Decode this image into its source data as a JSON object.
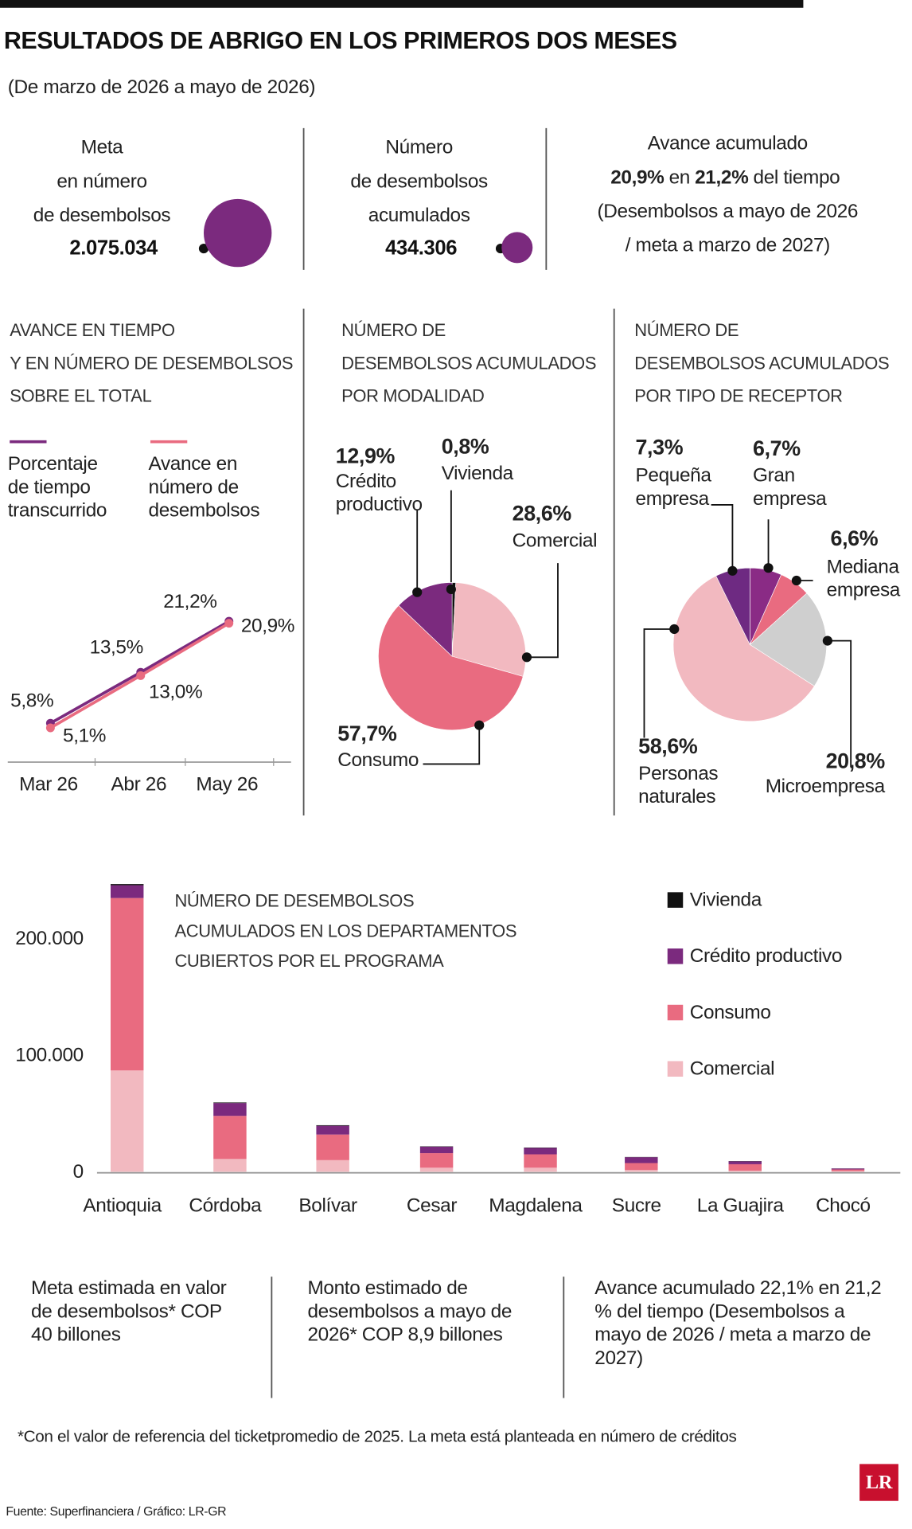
{
  "header": {
    "title": "RESULTADOS DE ABRIGO EN LOS PRIMEROS DOS MESES",
    "subtitle": "(De marzo de 2026 a mayo de 2026)"
  },
  "stats": [
    {
      "lines": [
        "Meta",
        "en número",
        "de desembolsos"
      ],
      "value": 2075034,
      "value_label": "2.075.034"
    },
    {
      "lines": [
        "Número",
        "de desembolsos",
        "acumulados"
      ],
      "value": 434306,
      "value_label": "434.306"
    },
    {
      "heading": "Avance acumulado",
      "parts": [
        "20,9%",
        "en",
        "21,2%",
        "del tiempo"
      ],
      "lines": [
        "(Desembolsos a mayo de 2026",
        "/ meta a marzo de 2027)"
      ]
    }
  ],
  "chart_data": [
    {
      "type": "line",
      "title": [
        "AVANCE EN TIEMPO",
        "Y EN NÚMERO DE DESEMBOLSOS",
        "SOBRE EL TOTAL"
      ],
      "categories": [
        "Mar 26",
        "Abr 26",
        "May 26"
      ],
      "series": [
        {
          "name": "Porcentaje de tiempo transcurrido",
          "color": "#7b2a7e",
          "values": [
            5.8,
            13.5,
            21.2
          ],
          "value_labels": [
            "5,8%",
            "13,5%",
            "21,2%"
          ]
        },
        {
          "name": "Avance en número de desembolsos",
          "color": "#e96b80",
          "values": [
            5.1,
            13.0,
            20.9
          ],
          "value_labels": [
            "5,1%",
            "13,0%",
            "20,9%"
          ]
        }
      ]
    },
    {
      "type": "pie",
      "title": [
        "NÚMERO DE",
        "DESEMBOLSOS ACUMULADOS",
        "POR MODALIDAD"
      ],
      "categories": [
        "Vivienda",
        "Comercial",
        "Consumo",
        "Crédito productivo"
      ],
      "values": [
        0.8,
        28.6,
        57.7,
        12.9
      ],
      "value_labels": [
        "0,8%",
        "28,6%",
        "57,7%",
        "12,9%"
      ],
      "colors": [
        "#111111",
        "#f2b9c0",
        "#e96b80",
        "#7b2a7e"
      ]
    },
    {
      "type": "pie",
      "title": [
        "NÚMERO DE",
        "DESEMBOLSOS ACUMULADOS",
        "POR TIPO DE RECEPTOR"
      ],
      "categories": [
        "Gran empresa",
        "Mediana empresa",
        "Microempresa",
        "Personas naturales",
        "Pequeña empresa"
      ],
      "values": [
        6.7,
        6.6,
        20.8,
        58.6,
        7.3
      ],
      "value_labels": [
        "6,7%",
        "6,6%",
        "20,8%",
        "58,6%",
        "7,3%"
      ],
      "colors": [
        "#8a2b85",
        "#e96b80",
        "#cfcfcf",
        "#f2b9c0",
        "#6e2a82"
      ]
    },
    {
      "type": "bar",
      "stacked": true,
      "title": [
        "NÚMERO DE DESEMBOLSOS",
        "ACUMULADOS EN LOS DEPARTAMENTOS",
        "CUBIERTOS POR EL PROGRAMA"
      ],
      "categories": [
        "Antioquia",
        "Córdoba",
        "Bolívar",
        "Cesar",
        "Magdalena",
        "Sucre",
        "La Guajira",
        "Chocó"
      ],
      "series": [
        {
          "name": "Vivienda",
          "color": "#111111",
          "values": [
            1000,
            500,
            500,
            300,
            300,
            200,
            200,
            100
          ]
        },
        {
          "name": "Crédito productivo",
          "color": "#7b2a7e",
          "values": [
            11000,
            11000,
            7500,
            5500,
            5500,
            5000,
            2500,
            800
          ]
        },
        {
          "name": "Consumo",
          "color": "#e96b80",
          "values": [
            148000,
            37000,
            22000,
            12500,
            11500,
            6000,
            5500,
            1500
          ]
        },
        {
          "name": "Comercial",
          "color": "#f2b9c0",
          "values": [
            87000,
            11000,
            10000,
            3500,
            3500,
            1500,
            1000,
            500
          ]
        }
      ],
      "ylim": [
        0,
        250000
      ],
      "yticks": [
        0,
        {
          "value": 100000,
          "label": "100.000"
        },
        {
          "value": 200000,
          "label": "200.000"
        }
      ],
      "grid": false
    }
  ],
  "notes": [
    "Meta estimada en valor de desembolsos* COP 40 billones",
    "Monto estimado de desembolsos a mayo de 2026* COP 8,9 billones",
    "Avance acumulado 22,1% en 21,2 % del tiempo (Desembolsos a mayo de 2026 / meta a marzo de 2027)"
  ],
  "footnote": "*Con el valor de referencia del ticketpromedio de 2025. La meta está planteada en número de créditos",
  "source": "Fuente: Superfinanciera / Gráfico: LR-GR",
  "logo": "LR"
}
